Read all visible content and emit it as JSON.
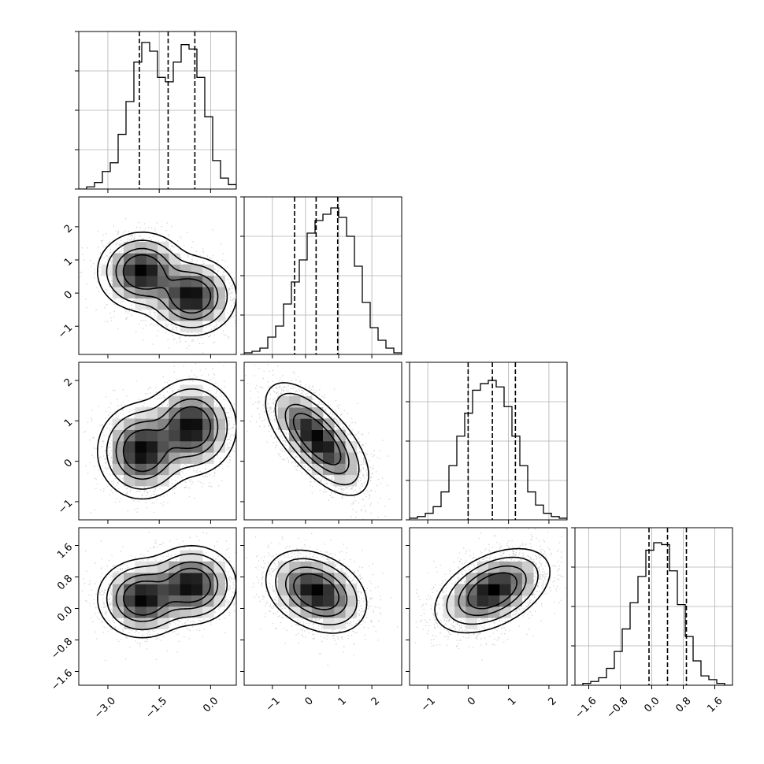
{
  "chart_data": {
    "type": "corner",
    "title": "",
    "parameters": [
      {
        "range": [
          -3.85,
          0.75
        ],
        "ticks": [
          -3.0,
          -1.5,
          0.0
        ],
        "tick_labels": [
          "−3.0",
          "−1.5",
          "0.0"
        ],
        "hist": {
          "edges_start": -3.85,
          "bin_width": 0.23,
          "counts": [
            0,
            1,
            3,
            8,
            12,
            25,
            40,
            58,
            67,
            63,
            51,
            49,
            58,
            66,
            64,
            51,
            33,
            13,
            5,
            2
          ],
          "ylim": [
            0,
            72
          ]
        },
        "quantiles": [
          -2.08,
          -1.24,
          -0.46
        ]
      },
      {
        "range": [
          -1.85,
          2.9
        ],
        "ticks": [
          -1,
          0,
          1,
          2
        ],
        "tick_labels": [
          "−1",
          "0",
          "1",
          "2"
        ],
        "hist": {
          "edges_start": -1.85,
          "bin_width": 0.2375,
          "counts": [
            1,
            2,
            4,
            11,
            18,
            32,
            46,
            60,
            77,
            85,
            89,
            93,
            87,
            75,
            56,
            33,
            17,
            9,
            4,
            1
          ],
          "ylim": [
            0,
            100
          ]
        },
        "quantiles": [
          -0.33,
          0.32,
          0.97
        ]
      },
      {
        "range": [
          -1.45,
          2.45
        ],
        "ticks": [
          -1,
          0,
          1,
          2
        ],
        "tick_labels": [
          "−1",
          "0",
          "1",
          "2"
        ],
        "hist": {
          "edges_start": -1.45,
          "bin_width": 0.195,
          "counts": [
            1,
            2,
            4,
            8,
            17,
            33,
            51,
            65,
            79,
            83,
            85,
            81,
            69,
            51,
            33,
            17,
            9,
            4,
            2,
            1
          ],
          "ylim": [
            0,
            96
          ]
        },
        "quantiles": [
          0.0,
          0.6,
          1.17
        ]
      },
      {
        "range": [
          -1.95,
          2.05
        ],
        "ticks": [
          -1.6,
          -0.8,
          0.0,
          0.8,
          1.6
        ],
        "tick_labels": [
          "−1.6",
          "−0.8",
          "0.0",
          "0.8",
          "1.6"
        ],
        "hist": {
          "edges_start": -1.95,
          "bin_width": 0.2,
          "counts": [
            0,
            1,
            2,
            4,
            9,
            18,
            30,
            44,
            58,
            72,
            76,
            75,
            61,
            43,
            26,
            13,
            5,
            3,
            1,
            0
          ],
          "ylim": [
            0,
            84
          ]
        },
        "quantiles": [
          -0.07,
          0.4,
          0.88
        ]
      }
    ],
    "pair_modes": [
      {
        "row": 1,
        "col": 0,
        "modes": [
          [
            -2.0,
            0.65,
            0.5
          ],
          [
            -0.55,
            -0.1,
            0.5
          ]
        ],
        "spread": [
          0.55,
          0.5
        ],
        "corr": 0.0
      },
      {
        "row": 2,
        "col": 0,
        "modes": [
          [
            -2.0,
            0.25,
            0.5
          ],
          [
            -0.55,
            0.85,
            0.5
          ]
        ],
        "spread": [
          0.55,
          0.5
        ],
        "corr": 0.0
      },
      {
        "row": 2,
        "col": 1,
        "modes": [
          [
            0.0,
            0.85,
            0.5
          ],
          [
            0.7,
            0.25,
            0.5
          ]
        ],
        "spread": [
          0.55,
          0.5
        ],
        "corr": -0.55
      },
      {
        "row": 3,
        "col": 0,
        "modes": [
          [
            -2.0,
            0.25,
            0.5
          ],
          [
            -0.55,
            0.6,
            0.5
          ]
        ],
        "spread": [
          0.55,
          0.42
        ],
        "corr": 0.0
      },
      {
        "row": 3,
        "col": 1,
        "modes": [
          [
            0.0,
            0.55,
            0.5
          ],
          [
            0.65,
            0.3,
            0.5
          ]
        ],
        "spread": [
          0.55,
          0.42
        ],
        "corr": -0.2
      },
      {
        "row": 3,
        "col": 2,
        "modes": [
          [
            0.6,
            0.45,
            1.0
          ]
        ],
        "spread": [
          0.6,
          0.45
        ],
        "corr": 0.45
      }
    ],
    "contour_levels": [
      0.6,
      0.38,
      0.17,
      0.06
    ],
    "grid": true
  }
}
